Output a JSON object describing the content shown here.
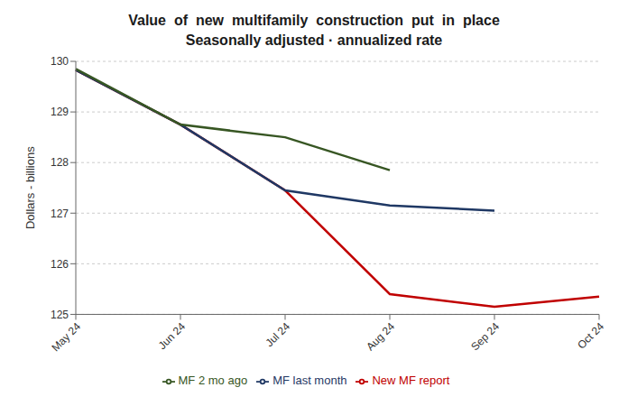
{
  "chart_data": {
    "type": "line",
    "title": "Value  of  new  multifamily  construction  put  in  place",
    "subtitle": "Seasonally adjusted · annualized rate",
    "y_label": "Dollars - billions",
    "categories": [
      "May 24",
      "Jun 24",
      "Jul 24",
      "Aug 24",
      "Sep 24",
      "Oct 24"
    ],
    "series": [
      {
        "name": "New MF report",
        "color": "#c00000",
        "values": [
          129.83,
          128.75,
          127.45,
          125.4,
          125.15,
          125.35
        ]
      },
      {
        "name": "MF last month",
        "color": "#1f3864",
        "values": [
          129.83,
          128.75,
          127.45,
          127.15,
          127.05,
          null
        ]
      },
      {
        "name": "MF 2 mo ago",
        "color": "#375623",
        "values": [
          129.85,
          128.75,
          128.5,
          127.85,
          null,
          null
        ]
      }
    ],
    "ylim": [
      125.0,
      130.0
    ],
    "yticks": [
      125,
      126,
      127,
      128,
      129,
      130
    ],
    "grid": true,
    "legend": "bottom"
  }
}
